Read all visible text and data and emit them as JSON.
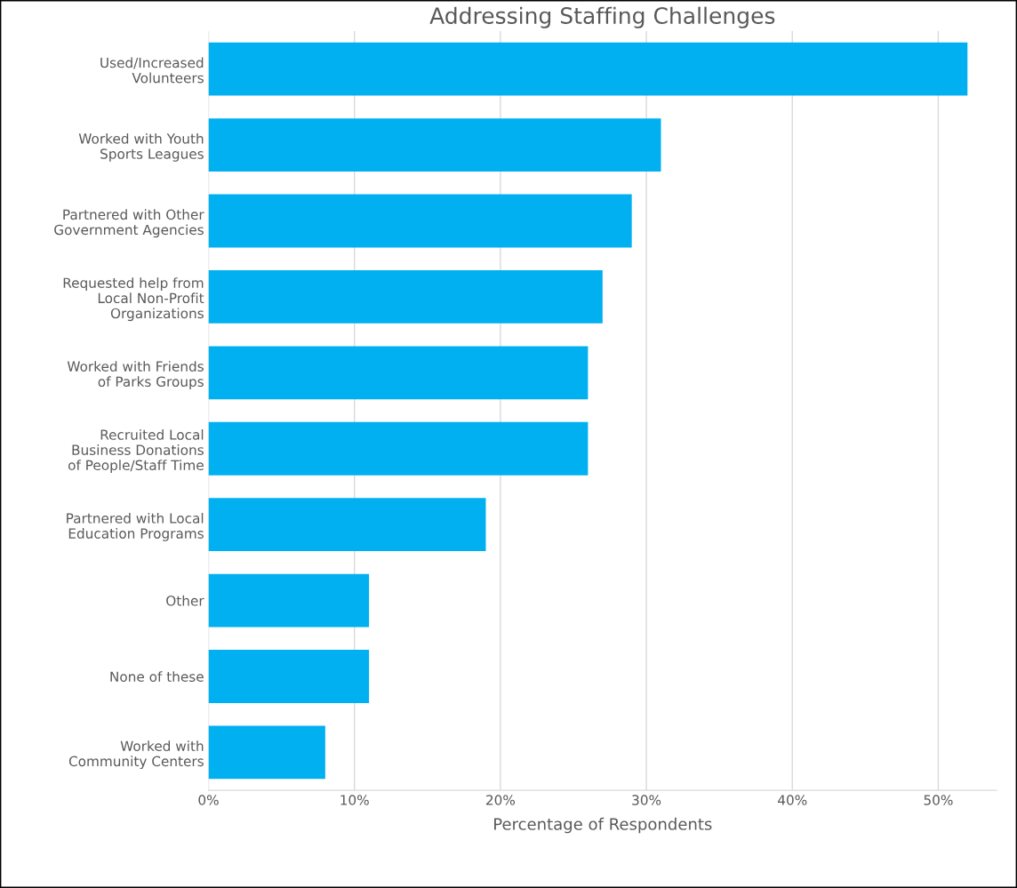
{
  "chart_data": {
    "type": "bar",
    "orientation": "horizontal",
    "title": "Addressing Staffing Challenges",
    "xlabel": "Percentage of Respondents",
    "categories": [
      "Used/Increased\nVolunteers",
      "Worked with Youth\nSports Leagues",
      "Partnered with Other\nGovernment Agencies",
      "Requested help from\nLocal Non-Profit\nOrganizations",
      "Worked with Friends\nof Parks Groups",
      "Recruited Local\nBusiness Donations\nof People/Staff Time",
      "Partnered with Local\nEducation Programs",
      "Other",
      "None of these",
      "Worked with\nCommunity Centers"
    ],
    "values": [
      52,
      31,
      29,
      27,
      26,
      26,
      19,
      11,
      11,
      8
    ],
    "color": "#00b0f0",
    "xlim": [
      0,
      54
    ],
    "xticks": [
      {
        "value": 0,
        "label": "0%"
      },
      {
        "value": 10,
        "label": "10%"
      },
      {
        "value": 20,
        "label": "20%"
      },
      {
        "value": 30,
        "label": "30%"
      },
      {
        "value": 40,
        "label": "40%"
      },
      {
        "value": 50,
        "label": "50%"
      }
    ],
    "grid": "x"
  }
}
